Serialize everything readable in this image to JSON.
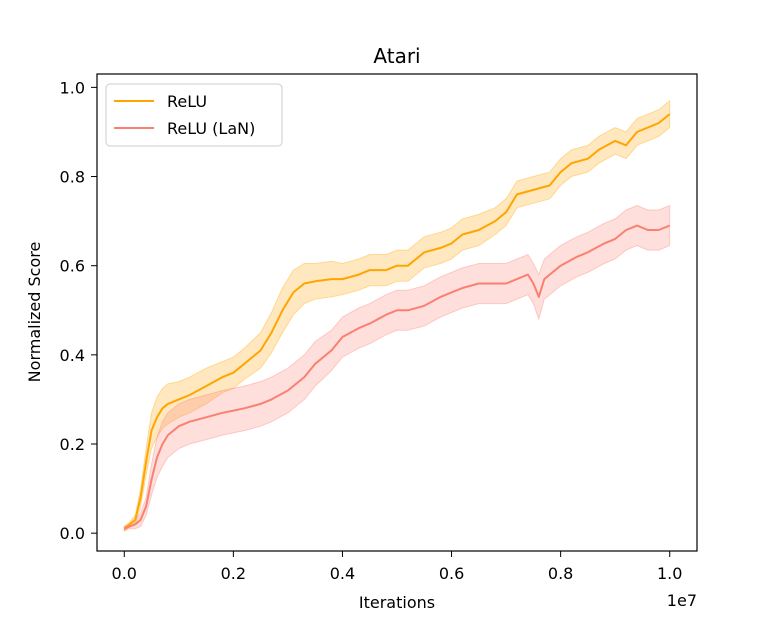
{
  "chart_data": {
    "type": "line",
    "title": "Atari",
    "xlabel": "Iterations",
    "ylabel": "Normalized Score",
    "x_offset_label": "1e7",
    "xlim": [
      -0.05,
      1.05
    ],
    "ylim": [
      -0.04,
      1.03
    ],
    "x_ticks": [
      0.0,
      0.2,
      0.4,
      0.6,
      0.8,
      1.0
    ],
    "x_tick_labels": [
      "0.0",
      "0.2",
      "0.4",
      "0.6",
      "0.8",
      "1.0"
    ],
    "y_ticks": [
      0.0,
      0.2,
      0.4,
      0.6,
      0.8,
      1.0
    ],
    "y_tick_labels": [
      "0.0",
      "0.2",
      "0.4",
      "0.6",
      "0.8",
      "1.0"
    ],
    "legend_position": "top-left",
    "grid": false,
    "series": [
      {
        "name": "ReLU",
        "color": "#FFA500",
        "x": [
          0.0,
          0.01,
          0.02,
          0.03,
          0.04,
          0.05,
          0.06,
          0.07,
          0.08,
          0.1,
          0.12,
          0.15,
          0.18,
          0.2,
          0.22,
          0.25,
          0.27,
          0.29,
          0.31,
          0.33,
          0.35,
          0.38,
          0.4,
          0.43,
          0.45,
          0.48,
          0.5,
          0.52,
          0.55,
          0.58,
          0.6,
          0.62,
          0.65,
          0.68,
          0.7,
          0.72,
          0.75,
          0.78,
          0.8,
          0.82,
          0.85,
          0.87,
          0.9,
          0.92,
          0.94,
          0.96,
          0.98,
          1.0
        ],
        "y": [
          0.01,
          0.02,
          0.03,
          0.08,
          0.16,
          0.23,
          0.26,
          0.28,
          0.29,
          0.3,
          0.31,
          0.33,
          0.35,
          0.36,
          0.38,
          0.41,
          0.45,
          0.5,
          0.54,
          0.56,
          0.565,
          0.57,
          0.57,
          0.58,
          0.59,
          0.59,
          0.6,
          0.6,
          0.63,
          0.64,
          0.65,
          0.67,
          0.68,
          0.7,
          0.72,
          0.76,
          0.77,
          0.78,
          0.81,
          0.83,
          0.84,
          0.86,
          0.88,
          0.87,
          0.9,
          0.91,
          0.92,
          0.94
        ],
        "band": [
          0.005,
          0.005,
          0.01,
          0.02,
          0.03,
          0.04,
          0.045,
          0.045,
          0.045,
          0.04,
          0.04,
          0.04,
          0.035,
          0.035,
          0.035,
          0.04,
          0.045,
          0.05,
          0.05,
          0.045,
          0.04,
          0.04,
          0.035,
          0.035,
          0.035,
          0.035,
          0.035,
          0.035,
          0.035,
          0.035,
          0.035,
          0.035,
          0.035,
          0.03,
          0.03,
          0.03,
          0.03,
          0.03,
          0.03,
          0.03,
          0.03,
          0.03,
          0.03,
          0.03,
          0.03,
          0.03,
          0.03,
          0.03
        ]
      },
      {
        "name": "ReLU (LaN)",
        "color": "#FA8072",
        "x": [
          0.0,
          0.01,
          0.02,
          0.03,
          0.04,
          0.05,
          0.06,
          0.07,
          0.08,
          0.1,
          0.12,
          0.15,
          0.18,
          0.2,
          0.22,
          0.25,
          0.27,
          0.3,
          0.33,
          0.35,
          0.38,
          0.4,
          0.43,
          0.45,
          0.48,
          0.5,
          0.52,
          0.55,
          0.58,
          0.6,
          0.62,
          0.65,
          0.68,
          0.7,
          0.72,
          0.74,
          0.75,
          0.76,
          0.77,
          0.78,
          0.8,
          0.83,
          0.85,
          0.88,
          0.9,
          0.92,
          0.94,
          0.96,
          0.98,
          1.0
        ],
        "y": [
          0.01,
          0.015,
          0.02,
          0.03,
          0.06,
          0.12,
          0.17,
          0.2,
          0.22,
          0.24,
          0.25,
          0.26,
          0.27,
          0.275,
          0.28,
          0.29,
          0.3,
          0.32,
          0.35,
          0.38,
          0.41,
          0.44,
          0.46,
          0.47,
          0.49,
          0.5,
          0.5,
          0.51,
          0.53,
          0.54,
          0.55,
          0.56,
          0.56,
          0.56,
          0.57,
          0.58,
          0.56,
          0.53,
          0.57,
          0.58,
          0.6,
          0.62,
          0.63,
          0.65,
          0.66,
          0.68,
          0.69,
          0.68,
          0.68,
          0.69
        ],
        "band": [
          0.005,
          0.005,
          0.01,
          0.015,
          0.02,
          0.035,
          0.045,
          0.05,
          0.05,
          0.05,
          0.05,
          0.05,
          0.05,
          0.05,
          0.05,
          0.05,
          0.05,
          0.05,
          0.05,
          0.05,
          0.045,
          0.045,
          0.045,
          0.045,
          0.045,
          0.045,
          0.045,
          0.045,
          0.045,
          0.045,
          0.045,
          0.045,
          0.045,
          0.045,
          0.045,
          0.045,
          0.045,
          0.05,
          0.045,
          0.045,
          0.045,
          0.045,
          0.045,
          0.045,
          0.045,
          0.045,
          0.045,
          0.045,
          0.045,
          0.045
        ]
      }
    ]
  }
}
